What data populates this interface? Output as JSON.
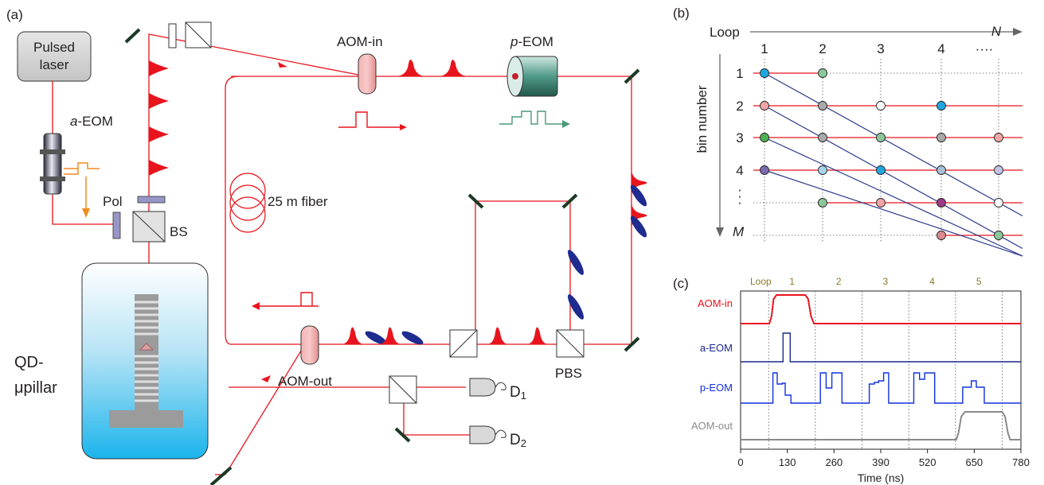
{
  "panel_a": {
    "tag": "(a)",
    "pulsed_laser": [
      "Pulsed",
      "laser"
    ],
    "a_eom": {
      "italic": "a",
      "rest": "-EOM"
    },
    "pol": "Pol",
    "bs": "BS",
    "aom_in": "AOM-in",
    "p_eom": {
      "italic": "p",
      "rest": "-EOM"
    },
    "fiber": "25 m fiber",
    "aom_out": "AOM-out",
    "pbs": "PBS",
    "qd": [
      "QD-",
      "μpillar"
    ],
    "d1": {
      "main": "D",
      "sub": "1"
    },
    "d2": {
      "main": "D",
      "sub": "2"
    }
  },
  "panel_b": {
    "tag": "(b)",
    "loop_label": "Loop",
    "axis_label": "bin number",
    "columns": [
      "1",
      "2",
      "3",
      "4",
      "····"
    ],
    "column_end": "N",
    "rows": [
      "1",
      "2",
      "3",
      "4",
      "·",
      "·",
      "·"
    ],
    "row_end": "M",
    "dots": [
      {
        "row": 1,
        "col": 1,
        "color": "#1fa8e0"
      },
      {
        "row": 1,
        "col": 2,
        "color": "#8cc79a"
      },
      {
        "row": 2,
        "col": 1,
        "color": "#f2a5a5"
      },
      {
        "row": 2,
        "col": 2,
        "color": "#a9a9a9"
      },
      {
        "row": 2,
        "col": 3,
        "color": "#ffffff"
      },
      {
        "row": 2,
        "col": 4,
        "color": "#1fa8e0"
      },
      {
        "row": 3,
        "col": 1,
        "color": "#4caf50"
      },
      {
        "row": 3,
        "col": 2,
        "color": "#a9a9a9"
      },
      {
        "row": 3,
        "col": 3,
        "color": "#8cc79a"
      },
      {
        "row": 3,
        "col": 4,
        "color": "#a9a9a9"
      },
      {
        "row": 3,
        "col": 5,
        "color": "#f2a5a5"
      },
      {
        "row": 4,
        "col": 1,
        "color": "#7b6bb0"
      },
      {
        "row": 4,
        "col": 2,
        "color": "#a7d4ea"
      },
      {
        "row": 4,
        "col": 3,
        "color": "#1fa8e0"
      },
      {
        "row": 4,
        "col": 4,
        "color": "#a9bfd8"
      },
      {
        "row": 4,
        "col": 5,
        "color": "#c2c4e6"
      },
      {
        "row": 5,
        "col": 2,
        "color": "#8cc79a"
      },
      {
        "row": 5,
        "col": 3,
        "color": "#f2a5a5"
      },
      {
        "row": 5,
        "col": 4,
        "color": "#9b3a86"
      },
      {
        "row": 5,
        "col": 5,
        "color": "#ffffff"
      },
      {
        "row": 6,
        "col": 4,
        "color": "#d98a8a"
      },
      {
        "row": 6,
        "col": 5,
        "color": "#8cc79a"
      }
    ]
  },
  "panel_c": {
    "tag": "(c)",
    "loop_label": "Loop",
    "loop_numbers": [
      "1",
      "2",
      "3",
      "4",
      "5"
    ],
    "traces": [
      {
        "label": "AOM-in",
        "color": "#e8141d"
      },
      {
        "label": "a-EOM",
        "color": "#1a2a8c"
      },
      {
        "label": "p-EOM",
        "color": "#1030e0"
      },
      {
        "label": "AOM-out",
        "color": "#8a8a8a"
      }
    ],
    "x_ticks": [
      "0",
      "130",
      "260",
      "390",
      "520",
      "650",
      "780"
    ],
    "x_label": "Time (ns)",
    "loop_boundaries_ns": [
      78,
      208,
      338,
      468,
      598,
      728
    ]
  }
}
